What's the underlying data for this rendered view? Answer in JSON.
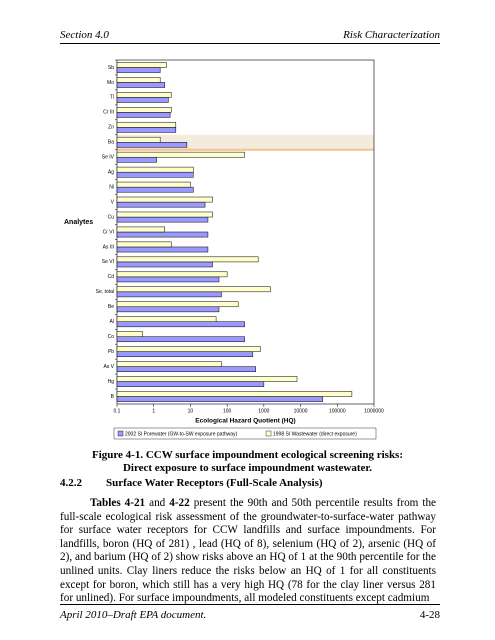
{
  "header": {
    "left": "Section 4.0",
    "right": "Risk Characterization"
  },
  "chart_data": {
    "type": "bar",
    "orientation": "horizontal",
    "y_label": "Analytes",
    "x_label": "Ecological Hazard Quotient (HQ)",
    "categories": [
      "Sb",
      "Mo",
      "Tl",
      "Cr III",
      "Zn",
      "Ba",
      "Se IV",
      "Ag",
      "Ni",
      "V",
      "Cu",
      "Cr VI",
      "As III",
      "Se VI",
      "Cd",
      "Se, total",
      "Be",
      "Al",
      "Co",
      "Pb",
      "As V",
      "Hg",
      "B"
    ],
    "series": [
      {
        "name": "2002 SI Porewater (GW-to-SW exposure pathway)",
        "color": "#9999ff",
        "values": [
          1.5,
          2,
          2.5,
          2.8,
          4,
          8,
          1.2,
          12,
          12,
          25,
          30,
          30,
          30,
          40,
          60,
          70,
          60,
          300,
          300,
          500,
          600,
          1000,
          40000
        ]
      },
      {
        "name": "1998 SI Wastewater (direct exposure)",
        "color": "#ffffcc",
        "values": [
          2.2,
          1.5,
          3,
          3,
          4,
          1.5,
          300,
          12,
          10,
          40,
          40,
          2,
          3,
          700,
          100,
          1500,
          200,
          50,
          0.5,
          800,
          70,
          8000,
          250000
        ]
      }
    ],
    "xlim": [
      0.1,
      1000000
    ],
    "xticks": [
      0.1,
      1,
      10,
      100,
      1000,
      10000,
      100000,
      1000000
    ],
    "log_scale": true
  },
  "caption": [
    "Figure 4-1. CCW surface impoundment ecological screening risks:",
    "Direct exposure to surface impoundment wastewater."
  ],
  "section": {
    "number": "4.2.2",
    "title": "Surface Water Receptors (Full-Scale Analysis)"
  },
  "paragraph": [
    "Tables 4-21",
    " and ",
    "4-22",
    " present the 90th and 50th percentile results from the full-scale ecological risk assessment of the groundwater-to-surface-water pathway for surface water receptors for CCW landfills and surface impoundments. For landfills, boron (HQ of 281) , lead (HQ of 8), selenium (HQ of 2), arsenic (HQ of 2), and barium (HQ of 2) show risks above an HQ of 1 at the 90th percentile for the unlined units. Clay liners reduce the risks below an HQ of 1 for all constituents except for boron, which still has a very high HQ (78 for the clay liner versus 281 for unlined). For surface impoundments, all modeled constituents except cadmium"
  ],
  "footer": {
    "left": "April 2010–Draft EPA document.",
    "right": "4-28"
  }
}
